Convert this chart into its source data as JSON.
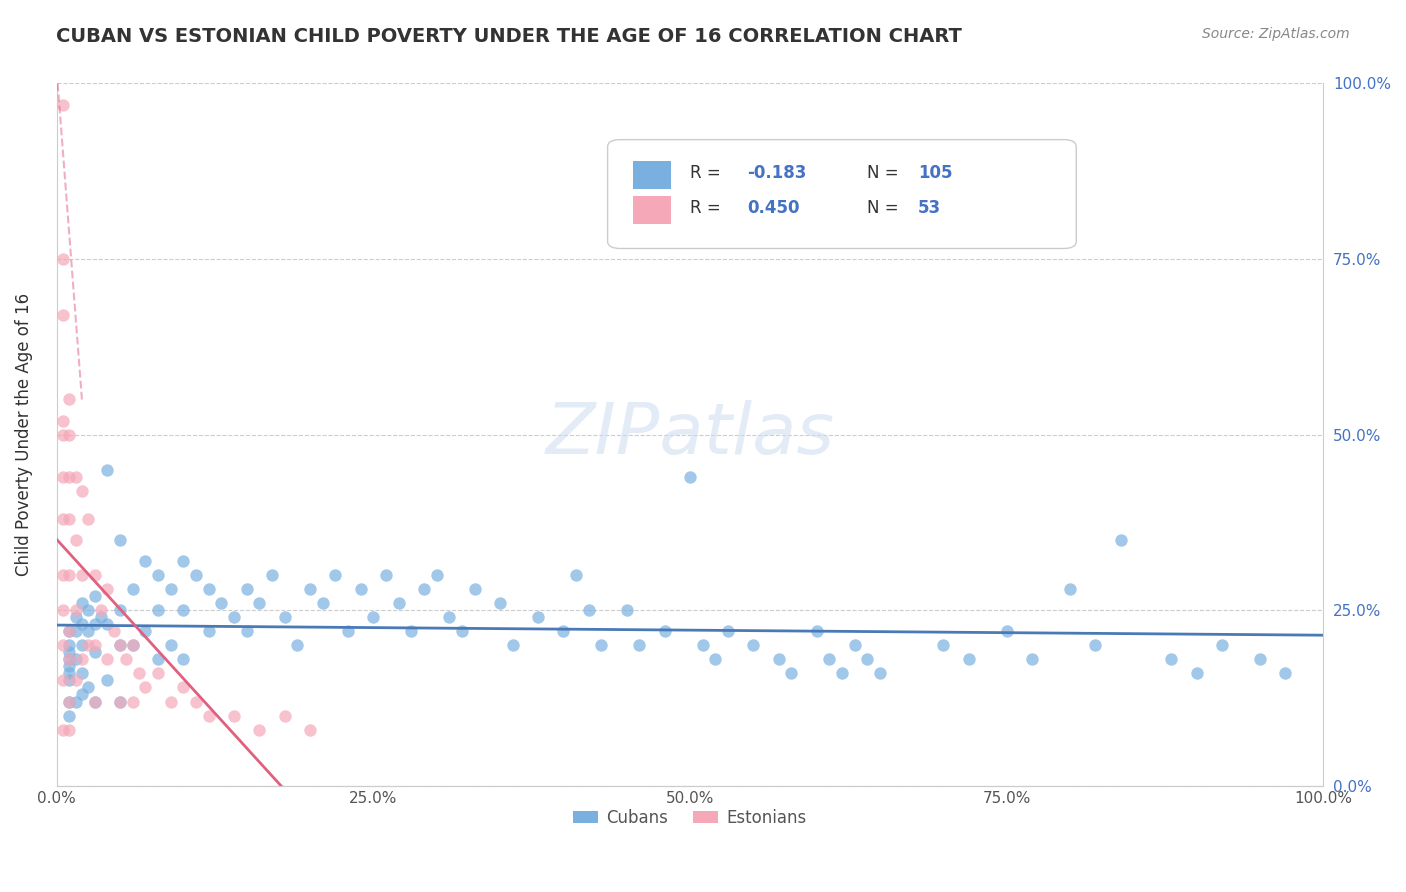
{
  "title": "CUBAN VS ESTONIAN CHILD POVERTY UNDER THE AGE OF 16 CORRELATION CHART",
  "source": "Source: ZipAtlas.com",
  "ylabel": "Child Poverty Under the Age of 16",
  "xlabel": "",
  "xlim": [
    0.0,
    1.0
  ],
  "ylim": [
    0.0,
    1.0
  ],
  "xticks": [
    0.0,
    0.25,
    0.5,
    0.75,
    1.0
  ],
  "xticklabels": [
    "0.0%",
    "25.0%",
    "50.0%",
    "75.0%",
    "100.0%"
  ],
  "yticks_left": [
    0.0,
    0.25,
    0.5,
    0.75,
    1.0
  ],
  "yticklabels_left": [
    "",
    "",
    "",
    "",
    ""
  ],
  "yticks_right": [
    0.0,
    0.25,
    0.5,
    0.75,
    1.0
  ],
  "yticklabels_right": [
    "0.0%",
    "25.0%",
    "50.0%",
    "75.0%",
    "100.0%"
  ],
  "cubans_color": "#7ab0e0",
  "estonians_color": "#f4a8b8",
  "cubans_line_color": "#4a7ab5",
  "estonians_line_color": "#e06080",
  "cubans_R": -0.183,
  "cubans_N": 105,
  "estonians_R": 0.45,
  "estonians_N": 53,
  "legend_cubans_label": "Cubans",
  "legend_estonians_label": "Estonians",
  "watermark": "ZIPatlas",
  "cubans_scatter_x": [
    0.01,
    0.01,
    0.01,
    0.01,
    0.01,
    0.01,
    0.01,
    0.01,
    0.01,
    0.015,
    0.015,
    0.015,
    0.015,
    0.02,
    0.02,
    0.02,
    0.02,
    0.02,
    0.025,
    0.025,
    0.025,
    0.03,
    0.03,
    0.03,
    0.03,
    0.035,
    0.04,
    0.04,
    0.04,
    0.05,
    0.05,
    0.05,
    0.05,
    0.06,
    0.06,
    0.07,
    0.07,
    0.08,
    0.08,
    0.08,
    0.09,
    0.09,
    0.1,
    0.1,
    0.1,
    0.11,
    0.12,
    0.12,
    0.13,
    0.14,
    0.15,
    0.15,
    0.16,
    0.17,
    0.18,
    0.19,
    0.2,
    0.21,
    0.22,
    0.23,
    0.24,
    0.25,
    0.26,
    0.27,
    0.28,
    0.29,
    0.3,
    0.31,
    0.32,
    0.33,
    0.35,
    0.36,
    0.38,
    0.4,
    0.41,
    0.42,
    0.43,
    0.45,
    0.46,
    0.48,
    0.5,
    0.51,
    0.52,
    0.53,
    0.55,
    0.57,
    0.58,
    0.6,
    0.61,
    0.62,
    0.63,
    0.64,
    0.65,
    0.7,
    0.72,
    0.75,
    0.77,
    0.8,
    0.82,
    0.84,
    0.88,
    0.9,
    0.92,
    0.95,
    0.97
  ],
  "cubans_scatter_y": [
    0.22,
    0.2,
    0.19,
    0.18,
    0.17,
    0.16,
    0.15,
    0.12,
    0.1,
    0.24,
    0.22,
    0.18,
    0.12,
    0.26,
    0.23,
    0.2,
    0.16,
    0.13,
    0.25,
    0.22,
    0.14,
    0.27,
    0.23,
    0.19,
    0.12,
    0.24,
    0.45,
    0.23,
    0.15,
    0.35,
    0.25,
    0.2,
    0.12,
    0.28,
    0.2,
    0.32,
    0.22,
    0.3,
    0.25,
    0.18,
    0.28,
    0.2,
    0.32,
    0.25,
    0.18,
    0.3,
    0.28,
    0.22,
    0.26,
    0.24,
    0.28,
    0.22,
    0.26,
    0.3,
    0.24,
    0.2,
    0.28,
    0.26,
    0.3,
    0.22,
    0.28,
    0.24,
    0.3,
    0.26,
    0.22,
    0.28,
    0.3,
    0.24,
    0.22,
    0.28,
    0.26,
    0.2,
    0.24,
    0.22,
    0.3,
    0.25,
    0.2,
    0.25,
    0.2,
    0.22,
    0.44,
    0.2,
    0.18,
    0.22,
    0.2,
    0.18,
    0.16,
    0.22,
    0.18,
    0.16,
    0.2,
    0.18,
    0.16,
    0.2,
    0.18,
    0.22,
    0.18,
    0.28,
    0.2,
    0.35,
    0.18,
    0.16,
    0.2,
    0.18,
    0.16
  ],
  "estonians_scatter_x": [
    0.005,
    0.005,
    0.005,
    0.005,
    0.005,
    0.005,
    0.005,
    0.005,
    0.005,
    0.005,
    0.005,
    0.005,
    0.01,
    0.01,
    0.01,
    0.01,
    0.01,
    0.01,
    0.01,
    0.01,
    0.01,
    0.015,
    0.015,
    0.015,
    0.015,
    0.02,
    0.02,
    0.02,
    0.025,
    0.025,
    0.03,
    0.03,
    0.03,
    0.035,
    0.04,
    0.04,
    0.045,
    0.05,
    0.05,
    0.055,
    0.06,
    0.06,
    0.065,
    0.07,
    0.08,
    0.09,
    0.1,
    0.11,
    0.12,
    0.14,
    0.16,
    0.18,
    0.2
  ],
  "estonians_scatter_y": [
    0.97,
    0.75,
    0.67,
    0.52,
    0.5,
    0.44,
    0.38,
    0.3,
    0.25,
    0.2,
    0.15,
    0.08,
    0.55,
    0.5,
    0.44,
    0.38,
    0.3,
    0.22,
    0.18,
    0.12,
    0.08,
    0.44,
    0.35,
    0.25,
    0.15,
    0.42,
    0.3,
    0.18,
    0.38,
    0.2,
    0.3,
    0.2,
    0.12,
    0.25,
    0.28,
    0.18,
    0.22,
    0.2,
    0.12,
    0.18,
    0.2,
    0.12,
    0.16,
    0.14,
    0.16,
    0.12,
    0.14,
    0.12,
    0.1,
    0.1,
    0.08,
    0.1,
    0.08
  ]
}
